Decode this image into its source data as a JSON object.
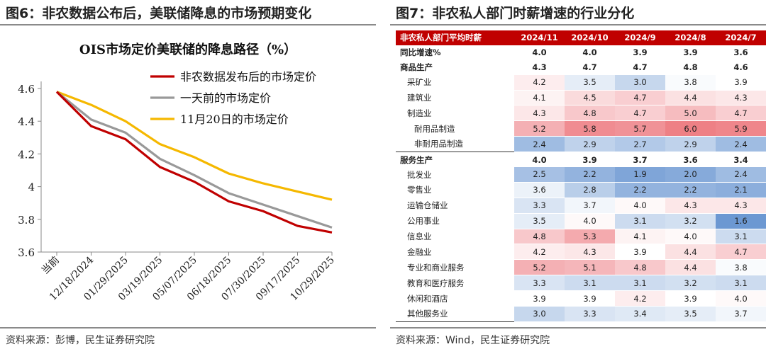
{
  "left": {
    "title": "图6：非农数据公布后，美联储降息的市场预期变化",
    "source": "资料来源：彭博，民生证券研究院"
  },
  "right": {
    "title": "图7：非农私人部门时薪增速的行业分化",
    "source": "资料来源：Wind，民生证券研究院"
  },
  "chart_data": {
    "type": "line",
    "title": "OIS市场定价美联储的降息路径（%）",
    "categories": [
      "当前",
      "12/18/2024",
      "01/29/2025",
      "03/19/2025",
      "05/07/2025",
      "06/18/2025",
      "07/30/2025",
      "09/17/2025",
      "10/29/2025"
    ],
    "ylim": [
      3.6,
      4.6
    ],
    "yticks": [
      "3.6",
      "3.8",
      "4",
      "4.2",
      "4.4",
      "4.6"
    ],
    "legend_position": "top-right",
    "series": [
      {
        "name": "非农数据发布后的市场定价",
        "color": "#c00000",
        "values": [
          4.58,
          4.37,
          4.29,
          4.12,
          4.03,
          3.91,
          3.85,
          3.76,
          3.72
        ]
      },
      {
        "name": "一天前的市场定价",
        "color": "#999999",
        "values": [
          4.58,
          4.41,
          4.33,
          4.17,
          4.07,
          3.96,
          3.89,
          3.82,
          3.75
        ]
      },
      {
        "name": "11月20日的市场定价",
        "color": "#f5b800",
        "values": [
          4.58,
          4.5,
          4.4,
          4.26,
          4.18,
          4.08,
          4.02,
          3.97,
          3.92
        ]
      }
    ]
  },
  "table_data": {
    "type": "table",
    "header": [
      "非农私人部门平均时薪",
      "2024/11",
      "2024/10",
      "2024/9",
      "2024/8",
      "2024/7"
    ],
    "rows": [
      {
        "label": "同比增速%",
        "values": [
          "4.0",
          "4.0",
          "3.9",
          "3.9",
          "3.6"
        ],
        "bold": true,
        "indent": 0,
        "shade": false
      },
      {
        "label": "商品生产",
        "values": [
          "4.3",
          "4.7",
          "4.7",
          "4.8",
          "4.6"
        ],
        "bold": true,
        "indent": 0,
        "shade": false
      },
      {
        "label": "采矿业",
        "values": [
          "4.2",
          "3.5",
          "3.0",
          "3.8",
          "3.9"
        ],
        "bold": false,
        "indent": 1,
        "shade": true
      },
      {
        "label": "建筑业",
        "values": [
          "4.1",
          "4.5",
          "4.7",
          "4.4",
          "4.3"
        ],
        "bold": false,
        "indent": 1,
        "shade": true
      },
      {
        "label": "制造业",
        "values": [
          "4.3",
          "4.8",
          "4.7",
          "5.0",
          "4.7"
        ],
        "bold": false,
        "indent": 1,
        "shade": true
      },
      {
        "label": "耐用品制造",
        "values": [
          "5.2",
          "5.8",
          "5.7",
          "6.0",
          "5.9"
        ],
        "bold": false,
        "indent": 2,
        "shade": true
      },
      {
        "label": "非耐用品制造",
        "values": [
          "2.4",
          "2.9",
          "2.7",
          "2.9",
          "2.4"
        ],
        "bold": false,
        "indent": 2,
        "shade": true
      },
      {
        "label": "服务生产",
        "values": [
          "4.0",
          "3.9",
          "3.7",
          "3.6",
          "3.4"
        ],
        "bold": true,
        "indent": 0,
        "shade": false,
        "sep": true
      },
      {
        "label": "批发业",
        "values": [
          "2.5",
          "2.2",
          "1.9",
          "2.0",
          "2.4"
        ],
        "bold": false,
        "indent": 1,
        "shade": true
      },
      {
        "label": "零售业",
        "values": [
          "3.6",
          "2.8",
          "2.2",
          "2.2",
          "2.1"
        ],
        "bold": false,
        "indent": 1,
        "shade": true
      },
      {
        "label": "运输仓储业",
        "values": [
          "3.3",
          "3.7",
          "4.0",
          "4.3",
          "4.3"
        ],
        "bold": false,
        "indent": 1,
        "shade": true
      },
      {
        "label": "公用事业",
        "values": [
          "3.5",
          "4.0",
          "3.1",
          "3.2",
          "1.6"
        ],
        "bold": false,
        "indent": 1,
        "shade": true
      },
      {
        "label": "信息业",
        "values": [
          "4.8",
          "5.3",
          "4.1",
          "4.0",
          "3.1"
        ],
        "bold": false,
        "indent": 1,
        "shade": true
      },
      {
        "label": "金融业",
        "values": [
          "4.2",
          "4.3",
          "3.9",
          "4.4",
          "4.7"
        ],
        "bold": false,
        "indent": 1,
        "shade": true
      },
      {
        "label": "专业和商业服务",
        "values": [
          "5.2",
          "5.1",
          "4.8",
          "4.4",
          "3.8"
        ],
        "bold": false,
        "indent": 1,
        "shade": true
      },
      {
        "label": "教育和医疗服务",
        "values": [
          "3.3",
          "3.1",
          "3.1",
          "3.2",
          "3.1"
        ],
        "bold": false,
        "indent": 1,
        "shade": true
      },
      {
        "label": "休闲和酒店",
        "values": [
          "3.9",
          "3.9",
          "4.2",
          "3.9",
          "4.0"
        ],
        "bold": false,
        "indent": 1,
        "shade": true
      },
      {
        "label": "其他服务业",
        "values": [
          "3.0",
          "3.3",
          "3.4",
          "3.5",
          "3.7"
        ],
        "bold": false,
        "indent": 1,
        "shade": true,
        "last": true
      }
    ]
  }
}
